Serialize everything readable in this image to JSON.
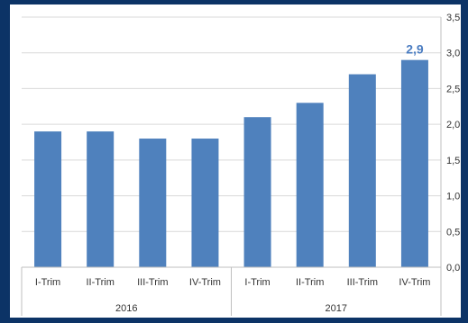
{
  "chart_data": {
    "type": "bar",
    "categories": [
      "I-Trim",
      "II-Trim",
      "III-Trim",
      "IV-Trim",
      "I-Trim",
      "II-Trim",
      "III-Trim",
      "IV-Trim"
    ],
    "groups": [
      {
        "label": "2016",
        "start": 0,
        "end": 3
      },
      {
        "label": "2017",
        "start": 4,
        "end": 7
      }
    ],
    "values": [
      1.9,
      1.9,
      1.8,
      1.8,
      2.1,
      2.3,
      2.7,
      2.9
    ],
    "value_labels": [
      "",
      "",
      "",
      "",
      "",
      "",
      "",
      "2,9"
    ],
    "yticks": [
      "0,0",
      "0,5",
      "1,0",
      "1,5",
      "2,0",
      "2,5",
      "3,0",
      "3,5"
    ],
    "ylim": [
      0,
      3.5
    ],
    "y_axis_position": "right",
    "grid": true,
    "bar_color": "#4f81bd",
    "label_color": "#4a7cc1",
    "grid_color": "#d9d9d9",
    "title": "",
    "xlabel": "",
    "ylabel": ""
  }
}
